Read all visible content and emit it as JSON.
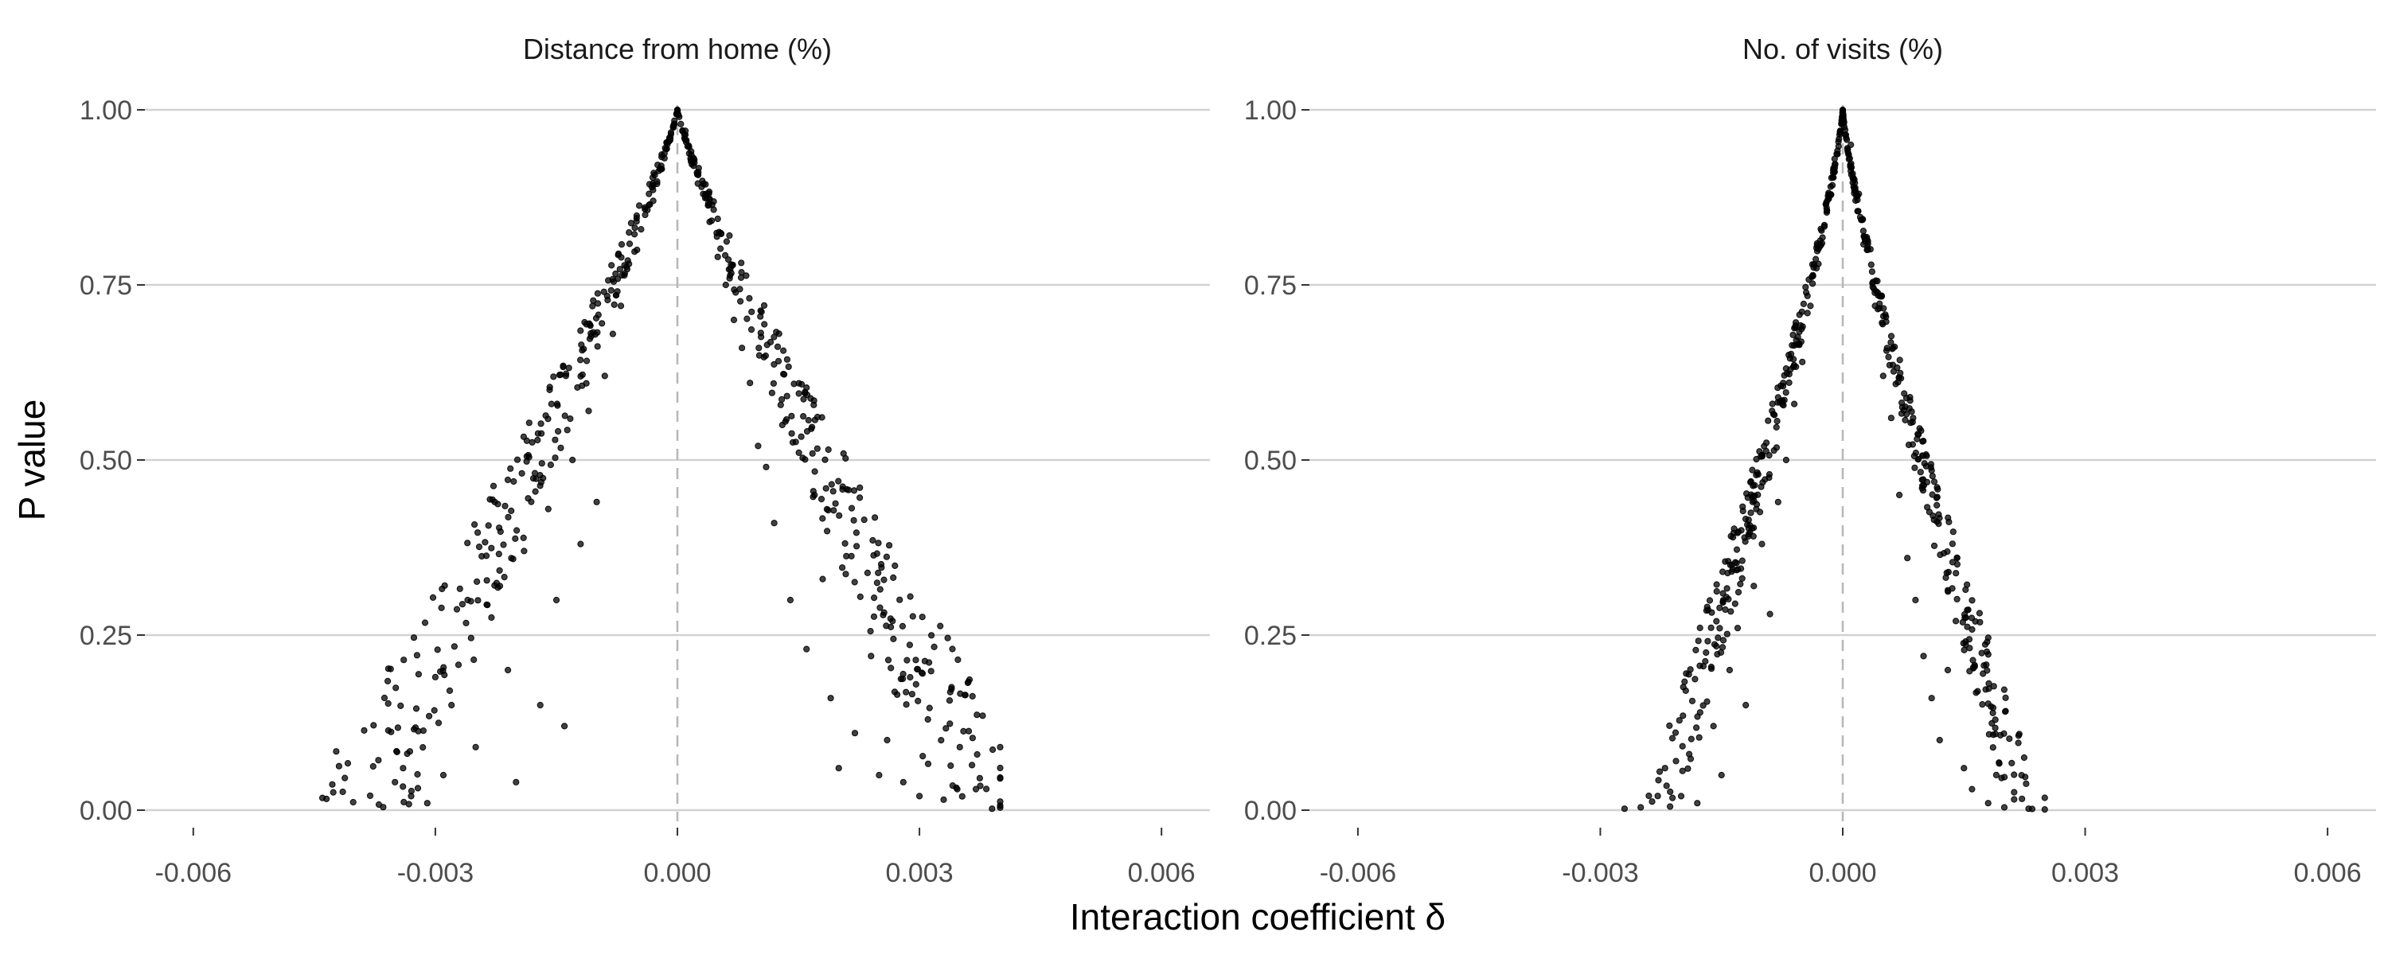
{
  "figure": {
    "ylabel": "P value",
    "xlabel": "Interaction coefficient δ",
    "colors": {
      "points": "#000000",
      "grid": "#d2d2d2",
      "zero_line": "#b8b8b8"
    }
  },
  "chart_data": [
    {
      "type": "scatter",
      "title": "Distance from home (%)",
      "xlabel": "Interaction coefficient δ",
      "ylabel": "P value",
      "xlim": [
        -0.0066,
        0.0066
      ],
      "ylim": [
        0,
        1
      ],
      "x_ticks": [
        -0.006,
        -0.003,
        0.0,
        0.003,
        0.006
      ],
      "x_tick_labels": [
        "-0.006",
        "-0.003",
        "0.000",
        "0.003",
        "0.006"
      ],
      "y_ticks": [
        0,
        0.25,
        0.5,
        0.75,
        1.0
      ],
      "y_tick_labels": [
        "0.00",
        "0.25",
        "0.50",
        "0.75",
        "1.00"
      ],
      "grid": "horizontal",
      "reference_line_x": 0,
      "point_model": {
        "count": 560,
        "slope": 0.004,
        "curvature": 1.15,
        "noise": 0.17,
        "x_extent": [
          -0.0044,
          0.004
        ],
        "seed": 11
      },
      "points": [
        [
          -0.00435,
          0.016
        ],
        [
          -0.0037,
          0.008
        ],
        [
          -0.0035,
          0.04
        ],
        [
          -0.0034,
          0.06
        ],
        [
          -0.0033,
          0.02
        ],
        [
          -0.0031,
          0.01
        ],
        [
          -0.003,
          0.19
        ],
        [
          -0.0029,
          0.05
        ],
        [
          -0.0028,
          0.15
        ],
        [
          -0.0026,
          0.3
        ],
        [
          -0.0025,
          0.09
        ],
        [
          -0.0022,
          0.32
        ],
        [
          -0.0021,
          0.2
        ],
        [
          -0.002,
          0.04
        ],
        [
          -0.0019,
          0.37
        ],
        [
          -0.0017,
          0.15
        ],
        [
          -0.0016,
          0.43
        ],
        [
          -0.0015,
          0.3
        ],
        [
          -0.0014,
          0.12
        ],
        [
          -0.0013,
          0.5
        ],
        [
          -0.0012,
          0.38
        ],
        [
          -0.0011,
          0.57
        ],
        [
          -0.001,
          0.44
        ],
        [
          -0.0009,
          0.62
        ],
        [
          -0.0008,
          0.68
        ],
        [
          -0.0007,
          0.72
        ],
        [
          -0.0006,
          0.78
        ],
        [
          -0.0005,
          0.8
        ],
        [
          -0.0004,
          0.85
        ],
        [
          -0.0003,
          0.87
        ],
        [
          -0.0002,
          0.92
        ],
        [
          -0.0001,
          0.96
        ],
        [
          0.0,
          1.0
        ],
        [
          0.0001,
          0.97
        ],
        [
          0.0002,
          0.92
        ],
        [
          0.0003,
          0.89
        ],
        [
          0.0004,
          0.84
        ],
        [
          0.0005,
          0.79
        ],
        [
          0.0006,
          0.75
        ],
        [
          0.0007,
          0.7
        ],
        [
          0.0008,
          0.66
        ],
        [
          0.0009,
          0.61
        ],
        [
          0.001,
          0.52
        ],
        [
          0.0011,
          0.49
        ],
        [
          0.0012,
          0.41
        ],
        [
          0.0013,
          0.55
        ],
        [
          0.0014,
          0.3
        ],
        [
          0.0016,
          0.23
        ],
        [
          0.0017,
          0.45
        ],
        [
          0.0018,
          0.33
        ],
        [
          0.0019,
          0.16
        ],
        [
          0.002,
          0.06
        ],
        [
          0.0022,
          0.11
        ],
        [
          0.0024,
          0.22
        ],
        [
          0.0025,
          0.05
        ],
        [
          0.0026,
          0.1
        ],
        [
          0.0028,
          0.04
        ],
        [
          0.003,
          0.02
        ],
        [
          0.0033,
          0.015
        ],
        [
          0.0035,
          0.09
        ],
        [
          0.0037,
          0.03
        ],
        [
          0.0039,
          0.002
        ]
      ]
    },
    {
      "type": "scatter",
      "title": "No. of visits (%)",
      "xlabel": "Interaction coefficient δ",
      "ylabel": "P value",
      "xlim": [
        -0.0066,
        0.0066
      ],
      "ylim": [
        0,
        1
      ],
      "x_ticks": [
        -0.006,
        -0.003,
        0.0,
        0.003,
        0.006
      ],
      "x_tick_labels": [
        "-0.006",
        "-0.003",
        "0.000",
        "0.003",
        "0.006"
      ],
      "y_ticks": [
        0,
        0.25,
        0.5,
        0.75,
        1.0
      ],
      "y_tick_labels": [
        "0.00",
        "0.25",
        "0.50",
        "0.75",
        "1.00"
      ],
      "grid": "horizontal",
      "reference_line_x": 0,
      "point_model": {
        "count": 560,
        "slope": 0.0023,
        "curvature": 1.25,
        "noise": 0.12,
        "x_extent": [
          -0.0027,
          0.0025
        ],
        "seed": 29
      },
      "points": [
        [
          -0.0027,
          0.002
        ],
        [
          -0.0025,
          0.004
        ],
        [
          -0.0022,
          0.06
        ],
        [
          -0.002,
          0.02
        ],
        [
          -0.0019,
          0.08
        ],
        [
          -0.0018,
          0.01
        ],
        [
          -0.0016,
          0.12
        ],
        [
          -0.0015,
          0.05
        ],
        [
          -0.0014,
          0.2
        ],
        [
          -0.0013,
          0.26
        ],
        [
          -0.0012,
          0.15
        ],
        [
          -0.0011,
          0.32
        ],
        [
          -0.001,
          0.38
        ],
        [
          -0.0009,
          0.28
        ],
        [
          -0.0008,
          0.44
        ],
        [
          -0.0007,
          0.5
        ],
        [
          -0.0006,
          0.58
        ],
        [
          -0.0005,
          0.64
        ],
        [
          -0.0004,
          0.72
        ],
        [
          -0.0003,
          0.78
        ],
        [
          -0.0002,
          0.86
        ],
        [
          -0.0001,
          0.93
        ],
        [
          0.0,
          1.0
        ],
        [
          0.0001,
          0.95
        ],
        [
          0.0002,
          0.88
        ],
        [
          0.0003,
          0.8
        ],
        [
          0.0004,
          0.72
        ],
        [
          0.0005,
          0.62
        ],
        [
          0.0006,
          0.56
        ],
        [
          0.0007,
          0.45
        ],
        [
          0.0008,
          0.36
        ],
        [
          0.0009,
          0.3
        ],
        [
          0.001,
          0.22
        ],
        [
          0.0011,
          0.16
        ],
        [
          0.0012,
          0.1
        ],
        [
          0.0013,
          0.2
        ],
        [
          0.0014,
          0.27
        ],
        [
          0.0015,
          0.06
        ],
        [
          0.0016,
          0.03
        ],
        [
          0.0018,
          0.01
        ],
        [
          0.002,
          0.004
        ],
        [
          0.0023,
          0.002
        ],
        [
          0.0025,
          0.001
        ]
      ]
    }
  ]
}
